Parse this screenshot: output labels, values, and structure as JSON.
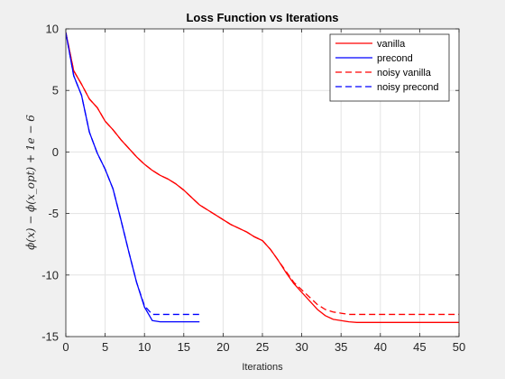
{
  "chart_data": {
    "type": "line",
    "title": "Loss Function vs Iterations",
    "xlabel": "Iterations",
    "ylabel": "ϕ(x) − ϕ(x_opt) + 1e − 6",
    "xlim": [
      0,
      50
    ],
    "ylim": [
      -15,
      10
    ],
    "xticks": [
      0,
      5,
      10,
      15,
      20,
      25,
      30,
      35,
      40,
      45,
      50
    ],
    "yticks": [
      -15,
      -10,
      -5,
      0,
      5,
      10
    ],
    "grid": true,
    "legend_position": "top-right",
    "series": [
      {
        "name": "vanilla",
        "color": "#ff0000",
        "dashed": false,
        "x": [
          0,
          1,
          2,
          3,
          4,
          5,
          6,
          7,
          8,
          9,
          10,
          11,
          12,
          13,
          14,
          15,
          16,
          17,
          18,
          19,
          20,
          21,
          22,
          23,
          24,
          25,
          26,
          27,
          28,
          29,
          30,
          31,
          32,
          33,
          34,
          35,
          36,
          37,
          38,
          39,
          40,
          41,
          42,
          43,
          44,
          45,
          46,
          47,
          48,
          49,
          50
        ],
        "y": [
          9.7,
          6.6,
          5.5,
          4.3,
          3.6,
          2.5,
          1.8,
          1.0,
          0.3,
          -0.4,
          -1.0,
          -1.5,
          -1.9,
          -2.2,
          -2.6,
          -3.1,
          -3.7,
          -4.3,
          -4.7,
          -5.1,
          -5.5,
          -5.9,
          -6.2,
          -6.5,
          -6.9,
          -7.2,
          -7.9,
          -8.8,
          -9.8,
          -10.7,
          -11.4,
          -12.1,
          -12.8,
          -13.3,
          -13.6,
          -13.7,
          -13.8,
          -13.85,
          -13.85,
          -13.85,
          -13.85,
          -13.85,
          -13.85,
          -13.85,
          -13.85,
          -13.85,
          -13.85,
          -13.85,
          -13.85,
          -13.85,
          -13.85
        ]
      },
      {
        "name": "precond",
        "color": "#0000ff",
        "dashed": false,
        "x": [
          0,
          1,
          2,
          3,
          4,
          5,
          6,
          7,
          8,
          9,
          10,
          11,
          12,
          13,
          14,
          15,
          16,
          17
        ],
        "y": [
          9.7,
          6.2,
          4.6,
          1.6,
          -0.1,
          -1.4,
          -3.0,
          -5.5,
          -8.1,
          -10.6,
          -12.6,
          -13.7,
          -13.8,
          -13.8,
          -13.8,
          -13.8,
          -13.8,
          -13.8
        ]
      },
      {
        "name": "noisy vanilla",
        "color": "#ff0000",
        "dashed": true,
        "x": [
          0,
          1,
          2,
          3,
          4,
          5,
          6,
          7,
          8,
          9,
          10,
          11,
          12,
          13,
          14,
          15,
          16,
          17,
          18,
          19,
          20,
          21,
          22,
          23,
          24,
          25,
          26,
          27,
          28,
          29,
          30,
          31,
          32,
          33,
          34,
          35,
          36,
          37,
          38,
          39,
          40,
          41,
          42,
          43,
          44,
          45,
          46,
          47,
          48,
          49,
          50
        ],
        "y": [
          9.7,
          6.6,
          5.5,
          4.3,
          3.6,
          2.5,
          1.8,
          1.0,
          0.3,
          -0.4,
          -1.0,
          -1.5,
          -1.9,
          -2.2,
          -2.6,
          -3.1,
          -3.7,
          -4.3,
          -4.7,
          -5.1,
          -5.5,
          -5.9,
          -6.2,
          -6.5,
          -6.9,
          -7.2,
          -7.9,
          -8.8,
          -9.7,
          -10.6,
          -11.2,
          -11.8,
          -12.4,
          -12.8,
          -13.0,
          -13.1,
          -13.2,
          -13.2,
          -13.2,
          -13.2,
          -13.2,
          -13.2,
          -13.2,
          -13.2,
          -13.2,
          -13.2,
          -13.2,
          -13.2,
          -13.2,
          -13.2,
          -13.2
        ]
      },
      {
        "name": "noisy precond",
        "color": "#0000ff",
        "dashed": true,
        "x": [
          0,
          1,
          2,
          3,
          4,
          5,
          6,
          7,
          8,
          9,
          10,
          11,
          12,
          13,
          14,
          15,
          16,
          17
        ],
        "y": [
          9.7,
          6.2,
          4.6,
          1.6,
          -0.1,
          -1.4,
          -3.0,
          -5.5,
          -8.1,
          -10.6,
          -12.5,
          -13.2,
          -13.2,
          -13.2,
          -13.2,
          -13.2,
          -13.2,
          -13.2
        ]
      }
    ]
  }
}
